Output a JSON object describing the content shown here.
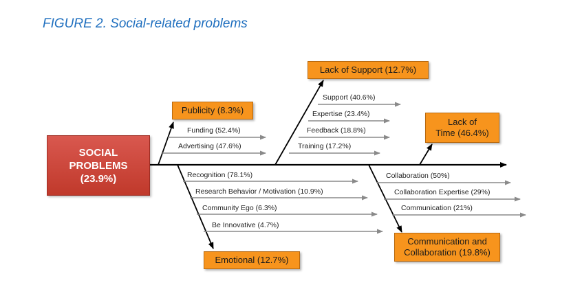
{
  "figure_title": "FIGURE 2. Social-related problems",
  "head": {
    "line1": "SOCIAL",
    "line2": "PROBLEMS",
    "line3": "(23.9%)"
  },
  "categories": {
    "publicity": "Publicity (8.3%)",
    "lack_of_support": "Lack of Support (12.7%)",
    "lack_of_time_line1": "Lack of",
    "lack_of_time_line2": "Time (46.4%)",
    "emotional": "Emotional (12.7%)",
    "communication_line1": "Communication and",
    "communication_line2": "Collaboration (19.8%)"
  },
  "causes": {
    "publicity": [
      "Funding (52.4%)",
      "Advertising (47.6%)"
    ],
    "lack_of_support": [
      "Support (40.6%)",
      "Expertise (23.4%)",
      "Feedback (18.8%)",
      "Training (17.2%)"
    ],
    "emotional": [
      "Recognition (78.1%)",
      "Research Behavior / Motivation (10.9%)",
      "Community Ego (6.3%)",
      "Be Innovative (4.7%)"
    ],
    "communication": [
      "Collaboration (50%)",
      "Collaboration Expertise (29%)",
      "Communication (21%)"
    ]
  },
  "colors": {
    "title": "#1f6fbf",
    "head": "#c0392b",
    "category": "#f7941d",
    "spine": "#000000",
    "cause_arrow": "#8a8a8a"
  }
}
